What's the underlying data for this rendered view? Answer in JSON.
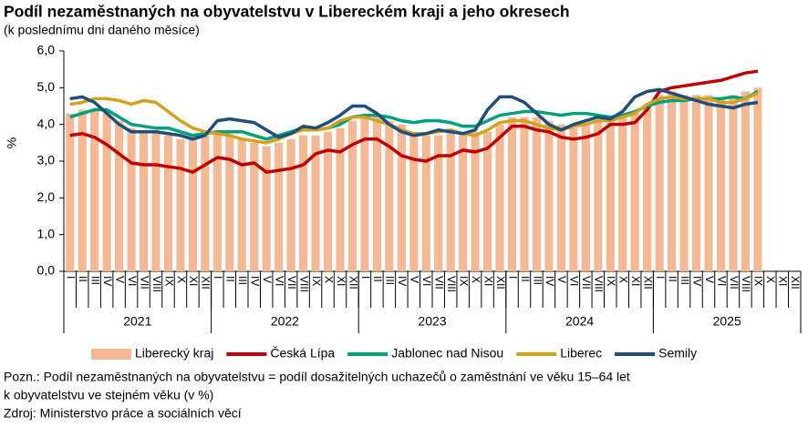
{
  "chart_data": {
    "type": "bar_line",
    "title": "Podíl nezaměstnaných na obyvatelstvu v Libereckém kraji a jeho okresech",
    "subtitle": "(k poslednímu dni daného měsíce)",
    "y_label": "%",
    "categories": [
      "I",
      "II",
      "III",
      "IV",
      "V",
      "VI",
      "VII",
      "VIII",
      "IX",
      "X",
      "XI",
      "XII",
      "I",
      "II",
      "III",
      "IV",
      "V",
      "VI",
      "VII",
      "VIII",
      "IX",
      "X",
      "XI",
      "XII",
      "I",
      "II",
      "III",
      "IV",
      "V",
      "VI",
      "VII",
      "VIII",
      "IX",
      "X",
      "XI",
      "XII",
      "I",
      "II",
      "III",
      "IV",
      "V",
      "VI",
      "VII",
      "VIII",
      "IX",
      "X",
      "XI",
      "XII",
      "I",
      "II",
      "III",
      "IV",
      "V",
      "VI",
      "VII",
      "VIII",
      "IX",
      "X",
      "XI",
      "XII"
    ],
    "year_groups": [
      "2021",
      "2022",
      "2023",
      "2024",
      "2025"
    ],
    "ylim": [
      0,
      6
    ],
    "yticks": [
      {
        "value": 0,
        "label": "0,0"
      },
      {
        "value": 1,
        "label": "1,0"
      },
      {
        "value": 2,
        "label": "2,0"
      },
      {
        "value": 3,
        "label": "3,0"
      },
      {
        "value": 4,
        "label": "4,0"
      },
      {
        "value": 5,
        "label": "5,0"
      },
      {
        "value": 6,
        "label": "6,0"
      }
    ],
    "grid": false,
    "series": [
      {
        "name": "Liberecký kraj",
        "kind": "bar",
        "color": "#f4b894",
        "values": [
          4.3,
          4.4,
          4.4,
          4.3,
          4.1,
          3.9,
          3.8,
          3.8,
          3.7,
          3.6,
          3.6,
          3.7,
          3.8,
          3.7,
          3.6,
          3.5,
          3.4,
          3.5,
          3.6,
          3.7,
          3.7,
          3.8,
          3.9,
          4.1,
          4.2,
          4.2,
          4.1,
          4.0,
          3.8,
          3.7,
          3.7,
          3.8,
          3.8,
          3.8,
          3.8,
          4.0,
          4.2,
          4.2,
          4.2,
          4.1,
          4.0,
          3.9,
          4.0,
          4.1,
          4.1,
          4.2,
          4.3,
          4.5,
          4.8,
          4.9,
          4.8,
          4.8,
          4.8,
          4.7,
          4.8,
          4.9,
          5.0,
          null,
          null,
          null
        ]
      },
      {
        "name": "Česká Lípa",
        "kind": "line",
        "color": "#c00000",
        "values": [
          3.7,
          3.75,
          3.65,
          3.45,
          3.2,
          2.95,
          2.9,
          2.9,
          2.85,
          2.8,
          2.7,
          2.9,
          3.1,
          3.05,
          2.9,
          2.95,
          2.7,
          2.75,
          2.8,
          2.9,
          3.2,
          3.3,
          3.25,
          3.45,
          3.6,
          3.6,
          3.4,
          3.15,
          3.05,
          3.0,
          3.15,
          3.15,
          3.3,
          3.25,
          3.35,
          3.65,
          3.95,
          3.95,
          3.85,
          3.8,
          3.65,
          3.6,
          3.65,
          3.75,
          4.0,
          4.0,
          4.05,
          4.4,
          4.9,
          5.0,
          5.05,
          5.1,
          5.15,
          5.2,
          5.3,
          5.4,
          5.45,
          null,
          null,
          null
        ]
      },
      {
        "name": "Jablonec nad Nisou",
        "kind": "line",
        "color": "#00a07a",
        "values": [
          4.2,
          4.3,
          4.4,
          4.4,
          4.2,
          4.0,
          3.95,
          3.9,
          3.9,
          3.8,
          3.7,
          3.75,
          3.8,
          3.8,
          3.8,
          3.7,
          3.6,
          3.7,
          3.8,
          3.9,
          3.85,
          3.9,
          4.0,
          4.2,
          4.25,
          4.25,
          4.2,
          4.1,
          4.05,
          4.1,
          4.1,
          4.05,
          3.95,
          3.95,
          4.1,
          4.25,
          4.3,
          4.35,
          4.35,
          4.3,
          4.25,
          4.3,
          4.3,
          4.25,
          4.2,
          4.25,
          4.35,
          4.5,
          4.6,
          4.65,
          4.65,
          4.7,
          4.7,
          4.7,
          4.75,
          4.7,
          4.9,
          null,
          null,
          null
        ]
      },
      {
        "name": "Liberec",
        "kind": "line",
        "color": "#d4a11e",
        "values": [
          4.55,
          4.6,
          4.7,
          4.7,
          4.65,
          4.55,
          4.65,
          4.6,
          4.35,
          4.1,
          3.9,
          3.8,
          3.75,
          3.7,
          3.6,
          3.55,
          3.5,
          3.6,
          3.75,
          3.85,
          3.85,
          3.9,
          4.1,
          4.2,
          4.2,
          4.1,
          4.0,
          3.85,
          3.75,
          3.75,
          3.8,
          3.85,
          3.75,
          3.7,
          3.85,
          4.05,
          4.1,
          4.1,
          4.0,
          3.9,
          3.85,
          3.95,
          4.0,
          4.1,
          4.1,
          4.2,
          4.3,
          4.55,
          4.7,
          4.75,
          4.7,
          4.7,
          4.7,
          4.6,
          4.6,
          4.7,
          4.85,
          null,
          null,
          null
        ]
      },
      {
        "name": "Semily",
        "kind": "line",
        "color": "#1f4e79",
        "values": [
          4.7,
          4.75,
          4.6,
          4.3,
          4.0,
          3.8,
          3.8,
          3.8,
          3.75,
          3.7,
          3.6,
          3.7,
          4.1,
          4.15,
          4.1,
          4.05,
          3.85,
          3.65,
          3.75,
          3.95,
          3.9,
          4.05,
          4.25,
          4.5,
          4.5,
          4.3,
          4.0,
          3.8,
          3.7,
          3.75,
          3.85,
          3.8,
          3.75,
          3.85,
          4.4,
          4.75,
          4.75,
          4.6,
          4.3,
          4.0,
          3.85,
          4.0,
          4.1,
          4.2,
          4.15,
          4.35,
          4.75,
          4.9,
          4.95,
          4.85,
          4.75,
          4.65,
          4.55,
          4.5,
          4.45,
          4.55,
          4.6,
          null,
          null,
          null
        ]
      }
    ],
    "notes": [
      "Pozn.: Podíl nezaměstnaných na obyvatelstvu  = podíl dosažitelných uchazečů o zaměstnání  ve věku 15–64 let",
      "k obyvatelstvu  ve stejném věku (v %)",
      "Zdroj: Ministerstvo  práce a sociálních věcí"
    ]
  }
}
